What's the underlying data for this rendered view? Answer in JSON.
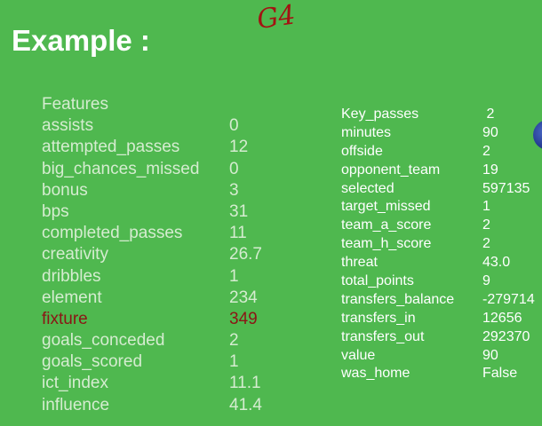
{
  "slide": {
    "title": "Example :",
    "annotation": "G4"
  },
  "colors": {
    "background": "#4fb84f",
    "text_left": "#d5ecd0",
    "text_right": "#ffffff",
    "highlight": "#8b1515",
    "annotation": "#a31212"
  },
  "icons": [
    "globe-icon"
  ],
  "left_table": [
    {
      "key": "Features",
      "value": ""
    },
    {
      "key": "assists",
      "value": "0"
    },
    {
      "key": "attempted_passes",
      "value": "12"
    },
    {
      "key": "big_chances_missed",
      "value": "0"
    },
    {
      "key": "bonus",
      "value": "3"
    },
    {
      "key": "bps",
      "value": "31"
    },
    {
      "key": "completed_passes",
      "value": "11"
    },
    {
      "key": "creativity",
      "value": "26.7"
    },
    {
      "key": "dribbles",
      "value": "1"
    },
    {
      "key": "element",
      "value": "234"
    },
    {
      "key": "fixture",
      "value": "349",
      "highlight": true
    },
    {
      "key": "goals_conceded",
      "value": "2"
    },
    {
      "key": "goals_scored",
      "value": "1"
    },
    {
      "key": "ict_index",
      "value": "11.1"
    },
    {
      "key": "influence",
      "value": "41.4"
    }
  ],
  "right_table": [
    {
      "key": "Key_passes",
      "value": " 2"
    },
    {
      "key": "minutes",
      "value": "90"
    },
    {
      "key": "offside",
      "value": "2"
    },
    {
      "key": "opponent_team",
      "value": "19"
    },
    {
      "key": "selected",
      "value": "597135"
    },
    {
      "key": "target_missed",
      "value": "1"
    },
    {
      "key": "team_a_score",
      "value": "2"
    },
    {
      "key": "team_h_score",
      "value": "2"
    },
    {
      "key": "threat",
      "value": "43.0"
    },
    {
      "key": "total_points",
      "value": "9"
    },
    {
      "key": "transfers_balance",
      "value": "-279714"
    },
    {
      "key": "transfers_in",
      "value": "12656"
    },
    {
      "key": "transfers_out",
      "value": "292370"
    },
    {
      "key": "value",
      "value": "90"
    },
    {
      "key": "was_home",
      "value": "False"
    }
  ]
}
